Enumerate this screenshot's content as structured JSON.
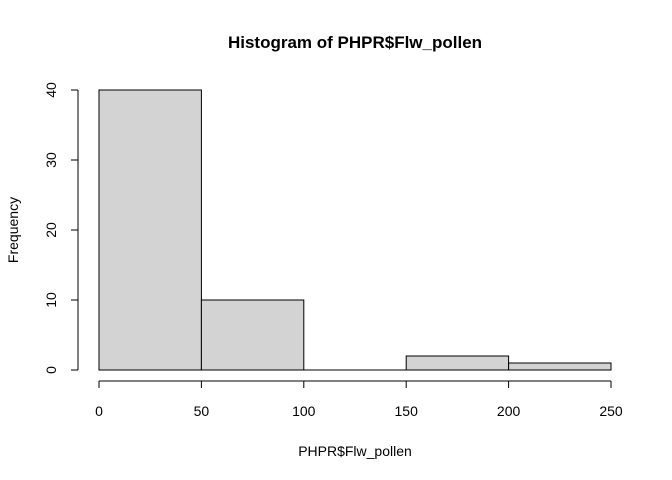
{
  "chart_data": {
    "type": "bar",
    "subtype": "histogram",
    "title": "Histogram of PHPR$Flw_pollen",
    "xlabel": "PHPR$Flw_pollen",
    "ylabel": "Frequency",
    "bins": [
      {
        "start": 0,
        "end": 50,
        "count": 40
      },
      {
        "start": 50,
        "end": 100,
        "count": 10
      },
      {
        "start": 100,
        "end": 150,
        "count": 0
      },
      {
        "start": 150,
        "end": 200,
        "count": 2
      },
      {
        "start": 200,
        "end": 250,
        "count": 1
      }
    ],
    "xticks": [
      0,
      50,
      100,
      150,
      200,
      250
    ],
    "yticks": [
      0,
      10,
      20,
      30,
      40
    ],
    "xlim": [
      0,
      250
    ],
    "ylim": [
      0,
      40
    ],
    "grid": false,
    "bar_color": "#d3d3d3",
    "edge_color": "#000000"
  }
}
